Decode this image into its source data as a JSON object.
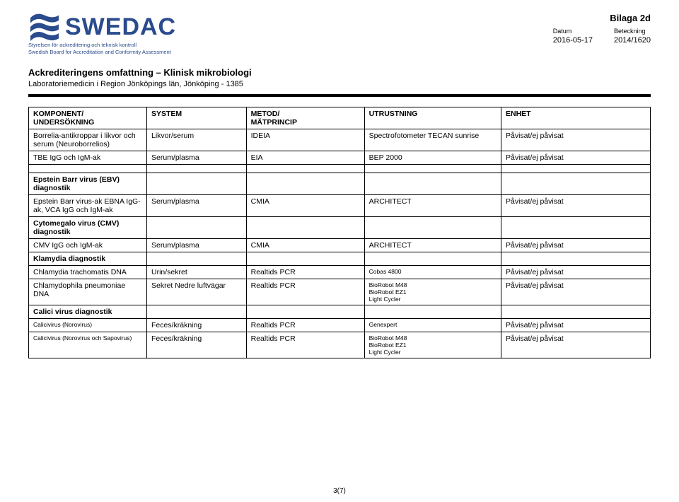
{
  "logo": {
    "word": "SWEDAC",
    "tag1": "Styrelsen för ackreditering och teknisk kontroll",
    "tag2": "Swedish Board for Accreditation and Conformity Assessment"
  },
  "header": {
    "bilaga": "Bilaga 2d",
    "datum_label": "Datum",
    "datum": "2016-05-17",
    "beteck_label": "Beteckning",
    "beteck": "2014/1620"
  },
  "title": "Ackrediteringens omfattning – Klinisk mikrobiologi",
  "subtitle": "Laboratoriemedicin i Region Jönköpings län, Jönköping - 1385",
  "columns": [
    "KOMPONENT/\nUNDERSÖKNING",
    "SYSTEM",
    "METOD/\nMÄTPRINCIP",
    "UTRUSTNING",
    "ENHET"
  ],
  "rows": [
    {
      "c0": "Borrelia-antikroppar i likvor och serum (Neuroborrelios)",
      "c1": "Likvor/serum",
      "c2": "IDEIA",
      "c3": "Spectrofotometer TECAN sunrise",
      "c4": "Påvisat/ej påvisat"
    },
    {
      "c0": "TBE IgG och IgM-ak",
      "c1": "Serum/plasma",
      "c2": "EIA",
      "c3": "BEP 2000",
      "c4": "Påvisat/ej påvisat"
    },
    {
      "spacer": true
    },
    {
      "c0": "Epstein Barr virus (EBV) diagnostik",
      "bold0": true,
      "c1": "",
      "c2": "",
      "c3": "",
      "c4": ""
    },
    {
      "c0": "Epstein Barr virus-ak EBNA IgG-ak, VCA IgG och IgM-ak",
      "c1": "Serum/plasma",
      "c2": "CMIA",
      "c3": "ARCHITECT",
      "c4": "Påvisat/ej påvisat"
    },
    {
      "c0": "Cytomegalo virus (CMV) diagnostik",
      "bold0": true,
      "c1": "",
      "c2": "",
      "c3": "",
      "c4": ""
    },
    {
      "c0": "CMV IgG och IgM-ak",
      "c1": "Serum/plasma",
      "c2": "CMIA",
      "c3": "ARCHITECT",
      "c4": "Påvisat/ej påvisat"
    },
    {
      "c0": "Klamydia diagnostik",
      "bold0": true,
      "c1": "",
      "c2": "",
      "c3": "",
      "c4": ""
    },
    {
      "c0": "Chlamydia trachomatis DNA",
      "c1": "Urin/sekret",
      "c2": "Realtids PCR",
      "c3": "Cobas 4800",
      "small3": true,
      "c4": "Påvisat/ej påvisat"
    },
    {
      "c0": "Chlamydophila pneumoniae  DNA",
      "c1": "Sekret Nedre luftvägar",
      "c2": "Realtids PCR",
      "c3": "BioRobot M48\nBioRobot EZ1\nLight Cycler",
      "small3": true,
      "c4": "Påvisat/ej påvisat"
    },
    {
      "c0": "Calici virus diagnostik",
      "bold0": true,
      "c1": "",
      "c2": "",
      "c3": "",
      "c4": ""
    },
    {
      "c0": "Calicivirus (Norovirus)",
      "small0": true,
      "c1": "Feces/kräkning",
      "c2": "Realtids PCR",
      "c3": "Genexpert",
      "small3": true,
      "c4": "Påvisat/ej påvisat"
    },
    {
      "c0": "Calicivirus (Norovirus och Sapovirus)",
      "small0": true,
      "c1": "Feces/kräkning",
      "c2": "Realtids PCR",
      "c3": "BioRobot M48\nBioRobot EZ1\nLight Cycler",
      "small3": true,
      "c4": "Påvisat/ej påvisat"
    }
  ],
  "pagenum": "3(7)"
}
